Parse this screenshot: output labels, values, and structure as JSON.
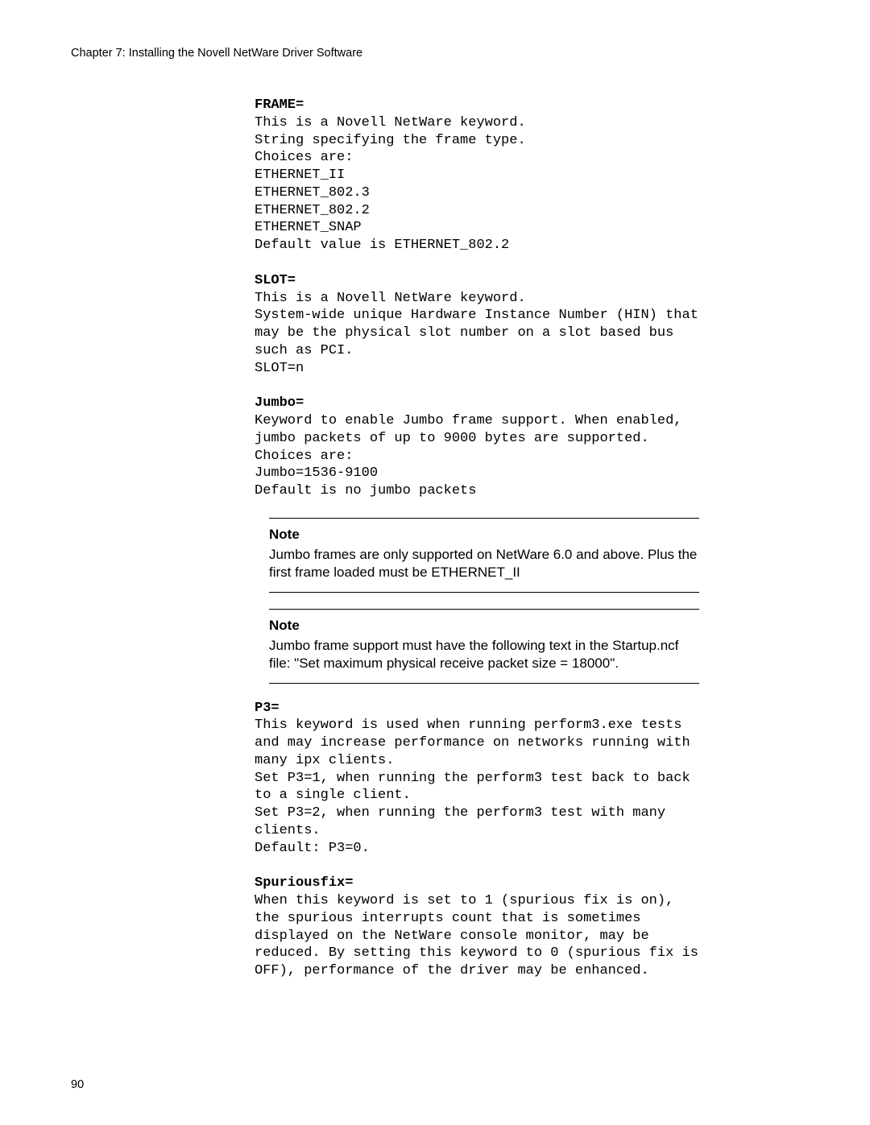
{
  "page": {
    "header": "Chapter 7: Installing the Novell NetWare Driver Software",
    "number": "90"
  },
  "sections": {
    "frame": {
      "title": "FRAME=",
      "body": "This is a Novell NetWare keyword.\nString specifying the frame type.\nChoices are:\nETHERNET_II\nETHERNET_802.3\nETHERNET_802.2\nETHERNET_SNAP\nDefault value is ETHERNET_802.2"
    },
    "slot": {
      "title": "SLOT=",
      "body": "This is a Novell NetWare keyword.\nSystem-wide unique Hardware Instance Number (HIN) that may be the physical slot number on a slot based bus such as PCI.\nSLOT=n"
    },
    "jumbo": {
      "title": "Jumbo=",
      "body": "Keyword to enable Jumbo frame support. When enabled, jumbo packets of up to 9000 bytes are supported.\nChoices are:\nJumbo=1536-9100\nDefault is no jumbo packets"
    },
    "note1": {
      "title": "Note",
      "body": "Jumbo frames are only supported on NetWare 6.0 and above. Plus the first frame loaded must be ETHERNET_II"
    },
    "note2": {
      "title": "Note",
      "body": "Jumbo frame support must have the following text in the Startup.ncf file: \"Set maximum physical receive packet size = 18000\"."
    },
    "p3": {
      "title": "P3=",
      "body": "This keyword is used when running perform3.exe tests and may increase performance on networks running with many ipx clients.\nSet P3=1, when running the perform3 test back to back to a single client.\nSet P3=2, when running the perform3 test with many clients.\nDefault: P3=0."
    },
    "spurious": {
      "title": "Spuriousfix=",
      "body": "When this keyword is set to 1 (spurious fix is on), the spurious interrupts count that is sometimes displayed on the NetWare console monitor, may be reduced. By setting this keyword to 0 (spurious fix is OFF), performance of the driver may be enhanced."
    }
  }
}
